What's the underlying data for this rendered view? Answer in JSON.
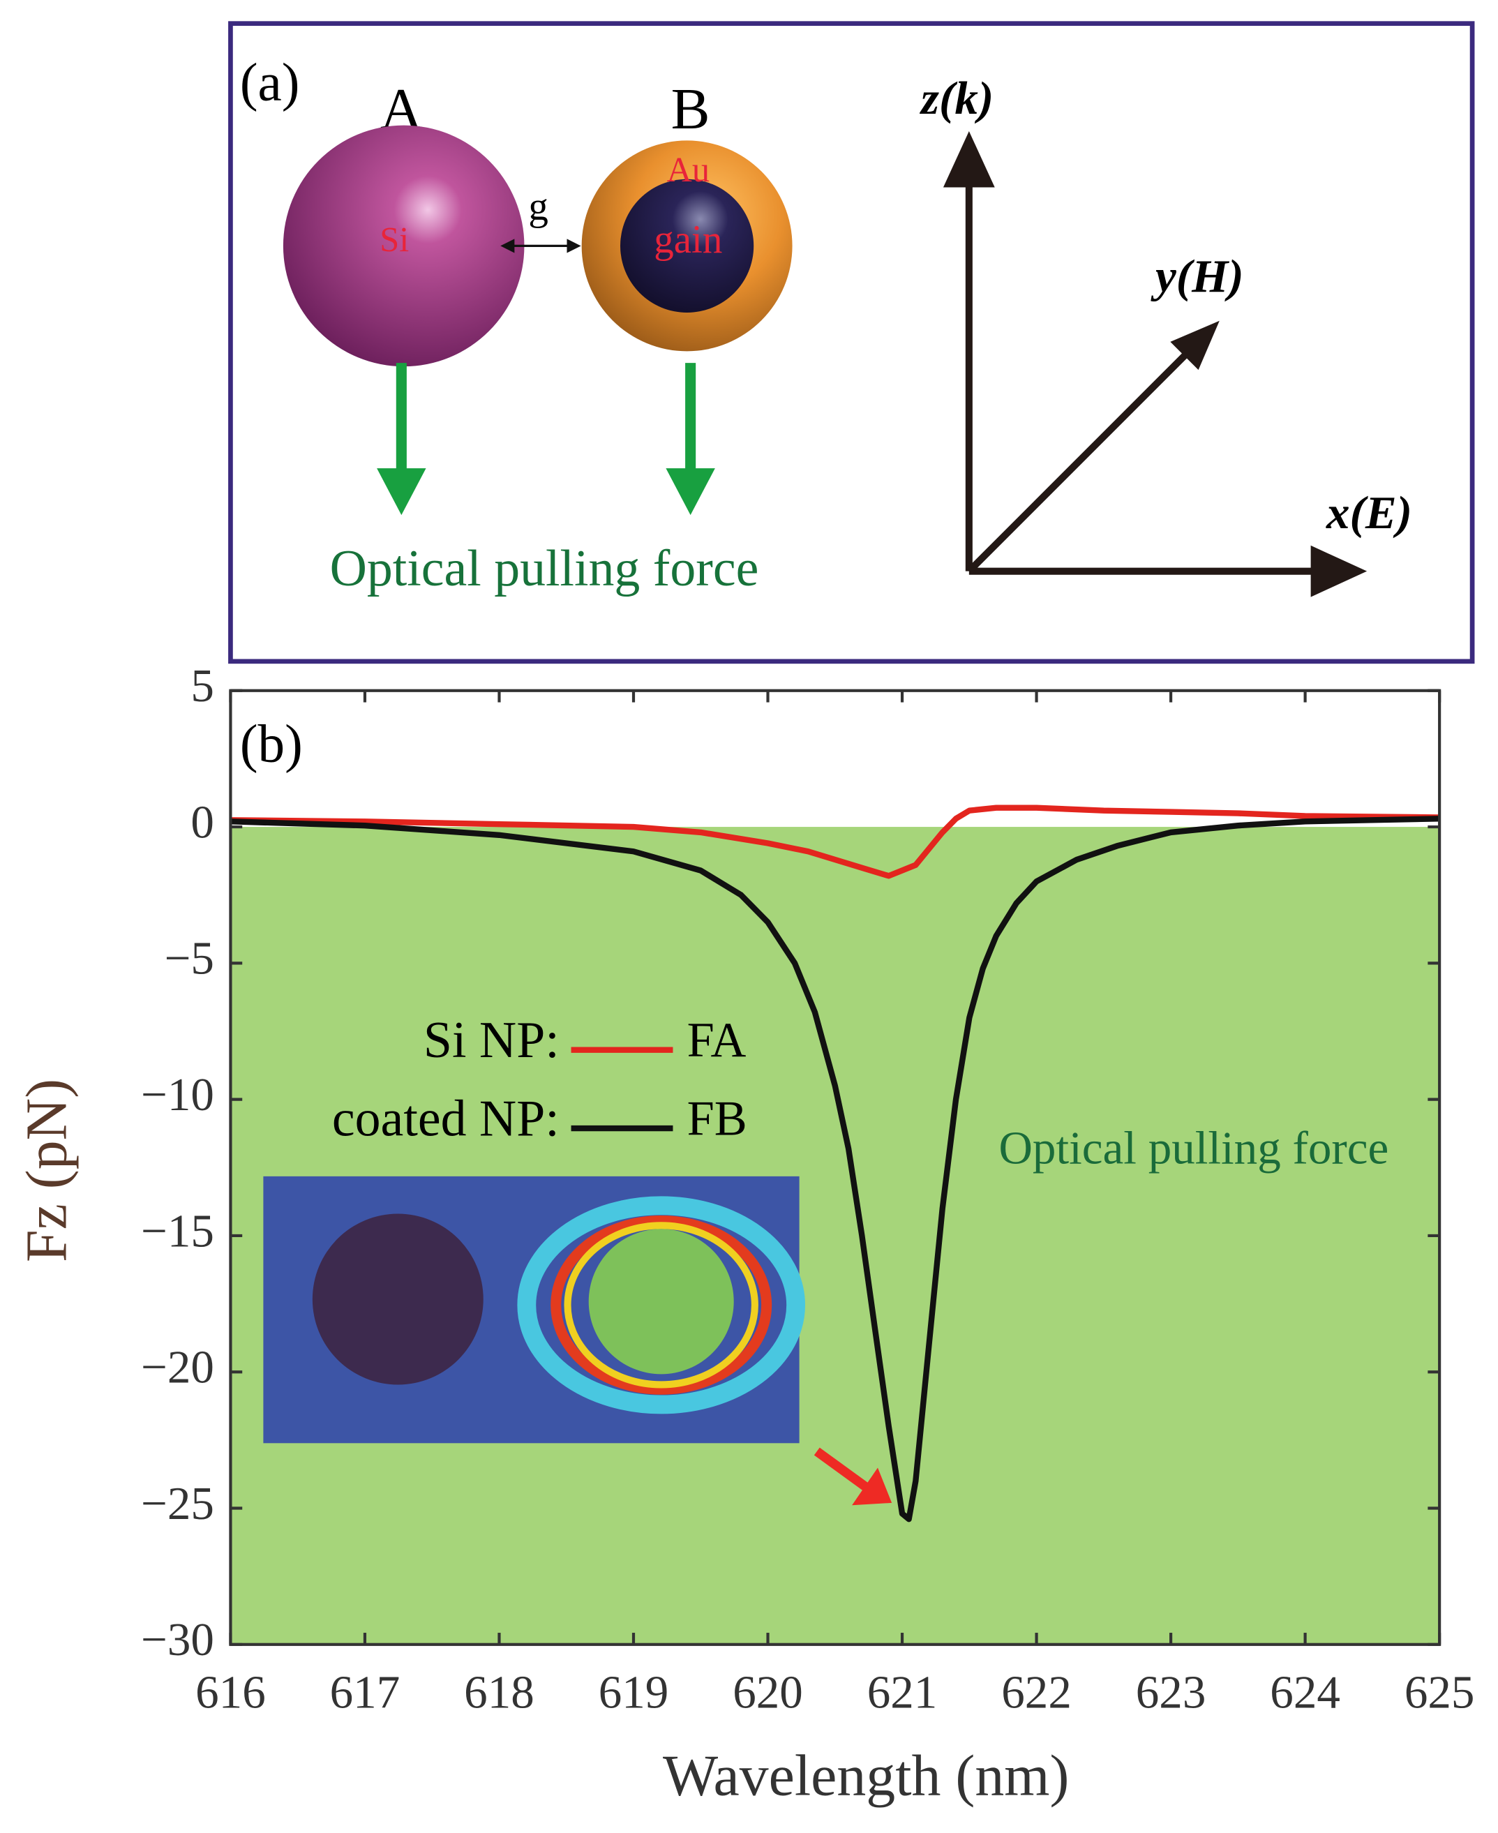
{
  "panel_a": {
    "label": "(a)",
    "particle_a": "A",
    "particle_b": "B",
    "material_a": "Si",
    "shell_b": "Au",
    "core_b": "gain",
    "gap": "g",
    "force_label": "Optical pulling force",
    "axis_z": "z(k)",
    "axis_y": "y(H)",
    "axis_x": "x(E)"
  },
  "chart_data": {
    "type": "line",
    "panel_label": "(b)",
    "xlabel": "Wavelength (nm)",
    "ylabel": "Fz (pN)",
    "xlim": [
      616,
      625
    ],
    "ylim": [
      -30,
      5
    ],
    "xticks": [
      616,
      617,
      618,
      619,
      620,
      621,
      622,
      623,
      624,
      625
    ],
    "yticks": [
      5,
      0,
      {
        "value": -5,
        "label": "−5"
      },
      {
        "value": -10,
        "label": "−10"
      },
      {
        "value": -15,
        "label": "−15"
      },
      {
        "value": -20,
        "label": "−20"
      },
      {
        "value": -25,
        "label": "−25"
      },
      {
        "value": -30,
        "label": "−30"
      }
    ],
    "shade": {
      "range": [
        -30,
        0
      ],
      "color": "#a6d57a",
      "label": "Optical pulling force"
    },
    "series": [
      {
        "name": "FA",
        "prefix": "Si NP:",
        "color": "#e3251e",
        "x": [
          616,
          617,
          618,
          619,
          619.5,
          620,
          620.3,
          620.5,
          620.7,
          620.9,
          621.1,
          621.2,
          621.3,
          621.4,
          621.5,
          621.7,
          622,
          622.5,
          623,
          623.5,
          624,
          625
        ],
        "values": [
          0.25,
          0.2,
          0.1,
          0,
          -0.2,
          -0.6,
          -0.9,
          -1.2,
          -1.5,
          -1.8,
          -1.4,
          -0.8,
          -0.2,
          0.3,
          0.6,
          0.7,
          0.7,
          0.6,
          0.55,
          0.5,
          0.4,
          0.35
        ]
      },
      {
        "name": "FB",
        "prefix": "coated NP:",
        "color": "#111111",
        "x": [
          616,
          617,
          618,
          619,
          619.5,
          619.8,
          620,
          620.2,
          620.35,
          620.5,
          620.6,
          620.7,
          620.8,
          620.9,
          621.0,
          621.05,
          621.1,
          621.2,
          621.3,
          621.4,
          621.5,
          621.6,
          621.7,
          621.85,
          622,
          622.3,
          622.6,
          623,
          623.5,
          624,
          625
        ],
        "values": [
          0.2,
          0.05,
          -0.3,
          -0.9,
          -1.6,
          -2.5,
          -3.5,
          -5,
          -6.8,
          -9.5,
          -11.8,
          -15,
          -18.5,
          -22,
          -25.2,
          -25.4,
          -24,
          -19,
          -14,
          -10,
          -7,
          -5.2,
          -4,
          -2.8,
          -2,
          -1.2,
          -0.7,
          -0.2,
          0.05,
          0.2,
          0.3
        ]
      }
    ]
  }
}
